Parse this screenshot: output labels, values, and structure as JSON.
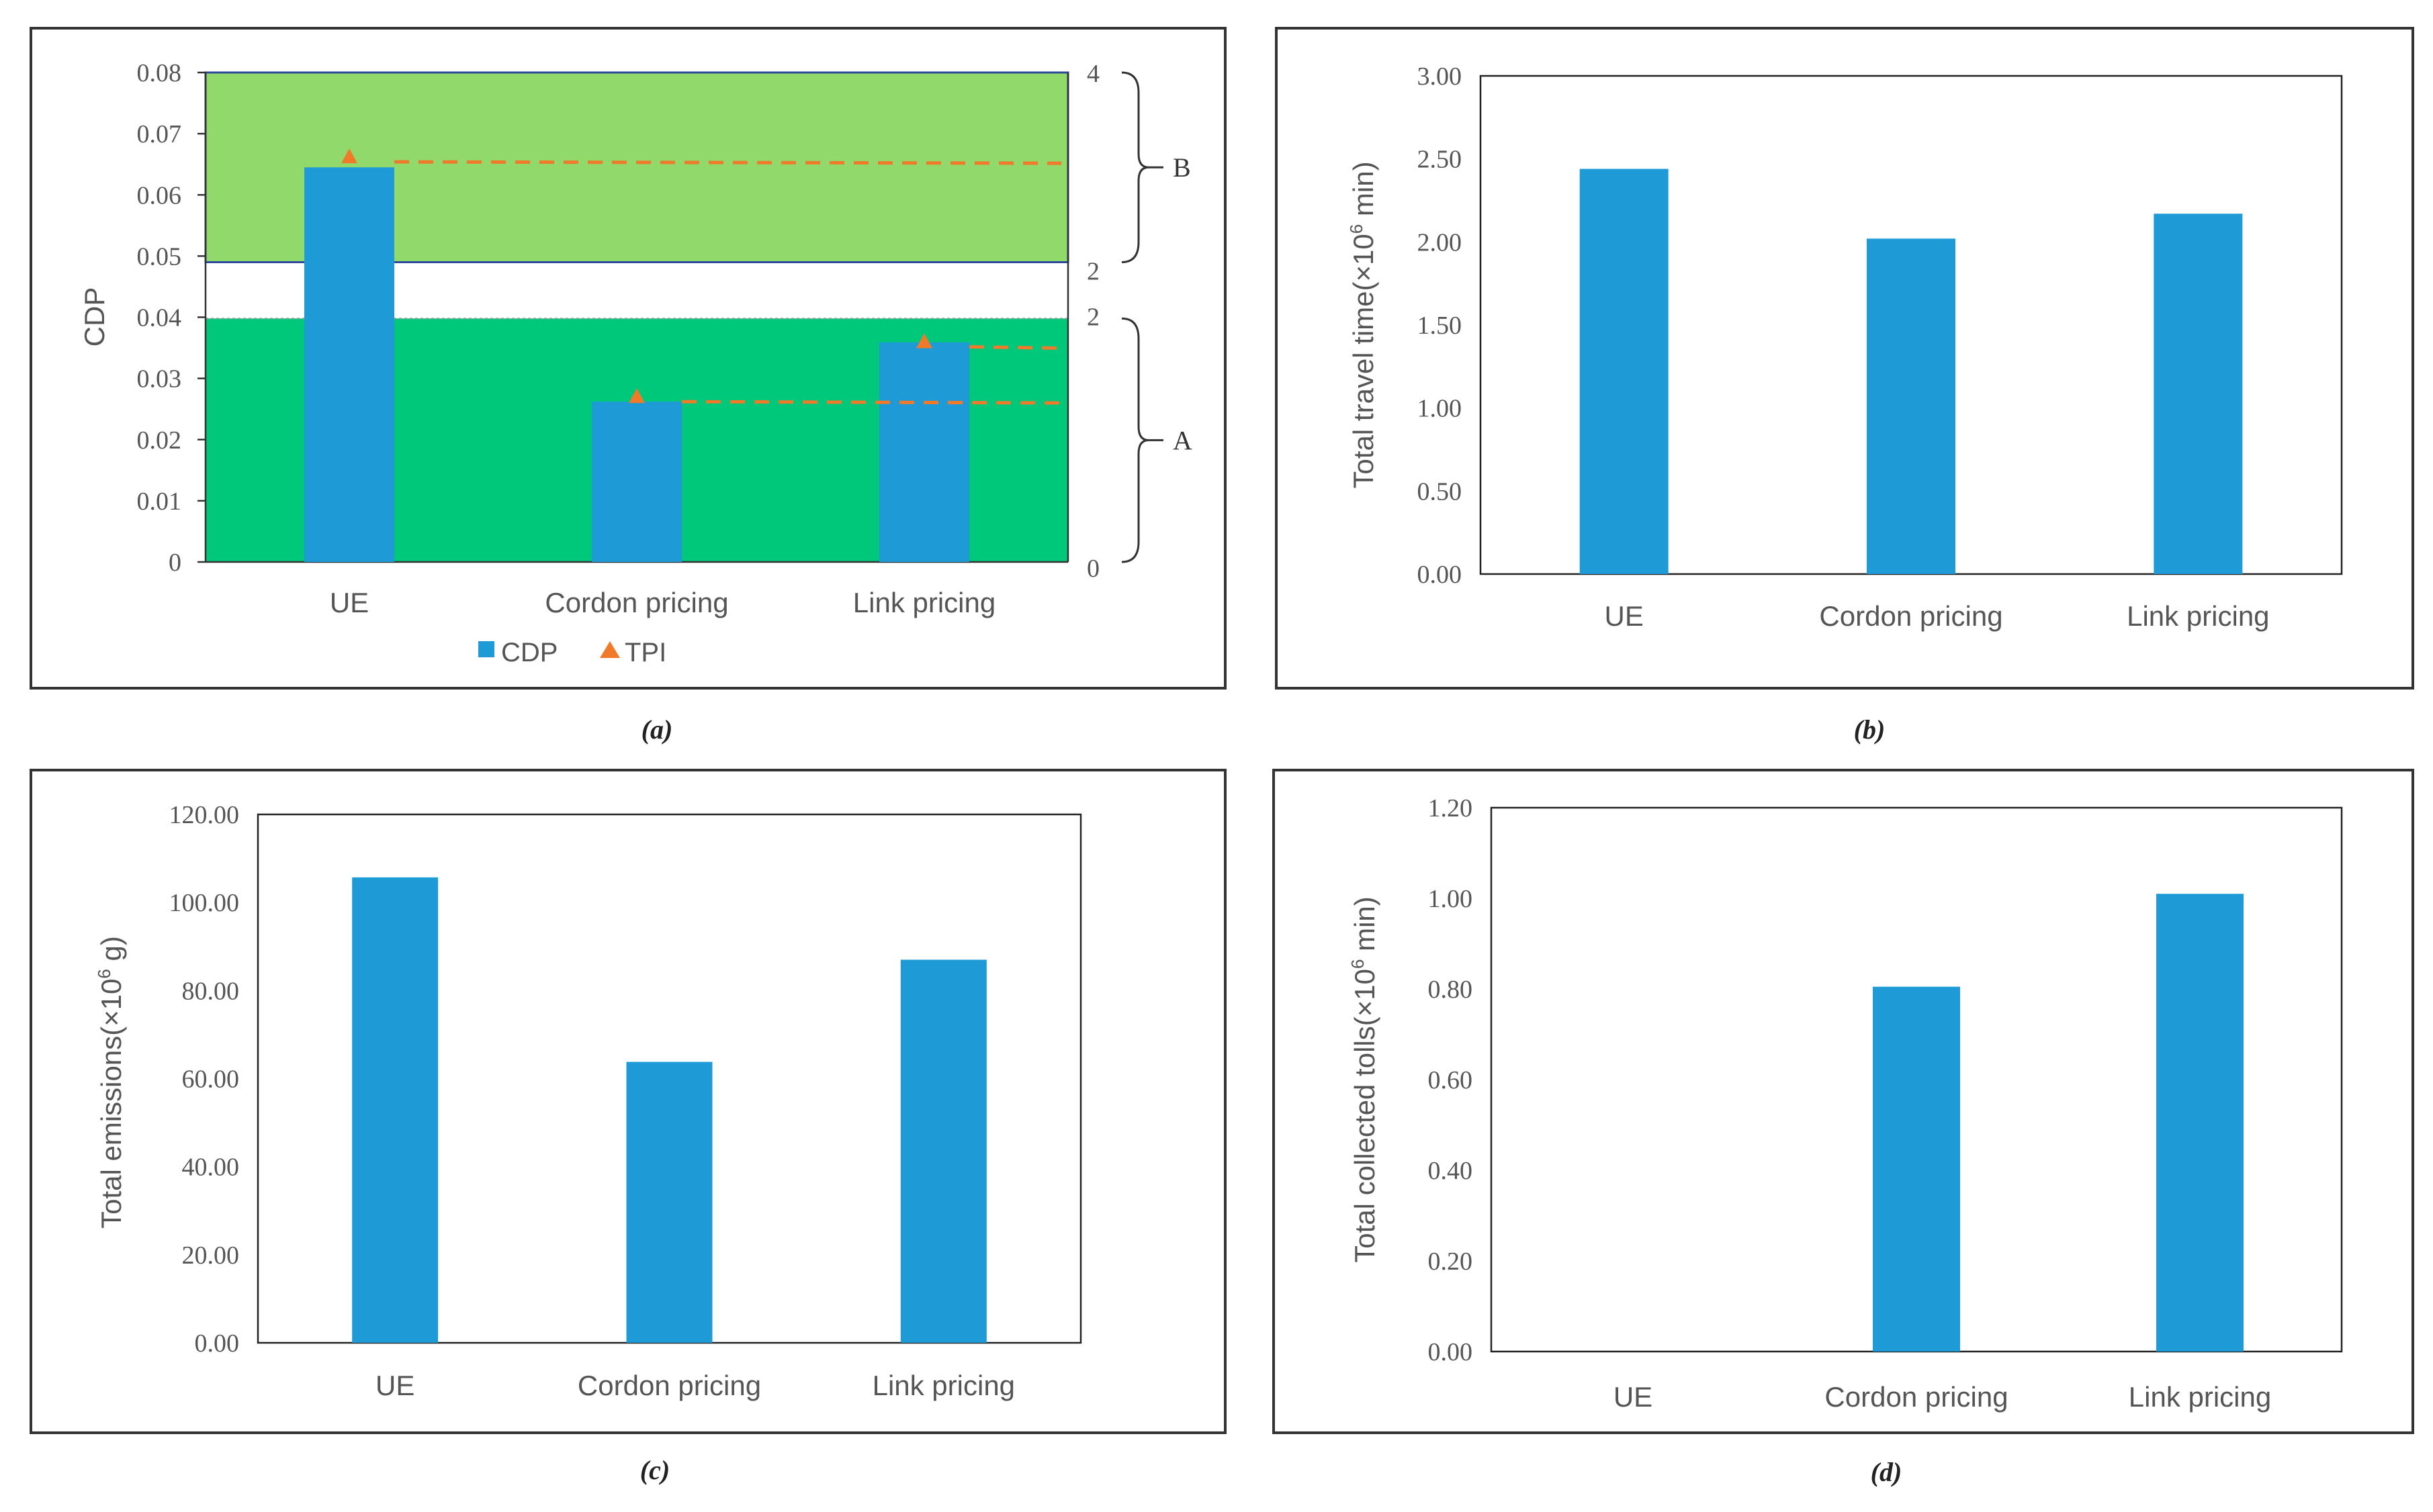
{
  "colors": {
    "bar": "#1E9BD7",
    "tpi": "#F07A2A",
    "region_b": "#92D96B",
    "region_a": "#00C87A"
  },
  "chart_data": [
    {
      "id": "a",
      "type": "bar",
      "caption": "(a)",
      "categories": [
        "UE",
        "Cordon pricing",
        "Link pricing"
      ],
      "series": [
        {
          "name": "CDP",
          "values": [
            0.0645,
            0.0262,
            0.0359
          ]
        },
        {
          "name": "TPI",
          "type": "line",
          "axis": "secondary",
          "values": [
            3.1,
            1.35,
            1.8
          ]
        }
      ],
      "ylabel": "CDP",
      "ylim": [
        0,
        0.08
      ],
      "yticks": [
        "0",
        "0.01",
        "0.02",
        "0.03",
        "0.04",
        "0.05",
        "0.06",
        "0.07",
        "0.08"
      ],
      "y2ticks": [
        "0",
        "2",
        "2",
        "4"
      ],
      "regions": [
        {
          "label": "A",
          "from": 0,
          "to": 0.0398
        },
        {
          "label": "B",
          "from": 0.049,
          "to": 0.08
        }
      ],
      "legend": [
        "CDP",
        "TPI"
      ]
    },
    {
      "id": "b",
      "type": "bar",
      "caption": "(b)",
      "categories": [
        "UE",
        "Cordon pricing",
        "Link pricing"
      ],
      "values": [
        2.44,
        2.02,
        2.17
      ],
      "ylabel": "Total travel time(×10",
      "ylabel_sup": "6",
      "ylabel_suffix": " min)",
      "ylim": [
        0,
        3
      ],
      "yticks": [
        "0.00",
        "0.50",
        "1.00",
        "1.50",
        "2.00",
        "2.50",
        "3.00"
      ]
    },
    {
      "id": "c",
      "type": "bar",
      "caption": "(c)",
      "categories": [
        "UE",
        "Cordon pricing",
        "Link pricing"
      ],
      "values": [
        105.7,
        63.8,
        87.0
      ],
      "ylabel": "Total emissions(×10",
      "ylabel_sup": "6",
      "ylabel_suffix": " g)",
      "ylim": [
        0,
        120
      ],
      "yticks": [
        "0.00",
        "20.00",
        "40.00",
        "60.00",
        "80.00",
        "100.00",
        "120.00"
      ]
    },
    {
      "id": "d",
      "type": "bar",
      "caption": "(d)",
      "categories": [
        "UE",
        "Cordon pricing",
        "Link pricing"
      ],
      "values": [
        0,
        0.805,
        1.01
      ],
      "ylabel": "Total collected tolls(×10",
      "ylabel_sup": "6",
      "ylabel_suffix": " min)",
      "ylim": [
        0,
        1.2
      ],
      "yticks": [
        "0.00",
        "0.20",
        "0.40",
        "0.60",
        "0.80",
        "1.00",
        "1.20"
      ]
    }
  ]
}
